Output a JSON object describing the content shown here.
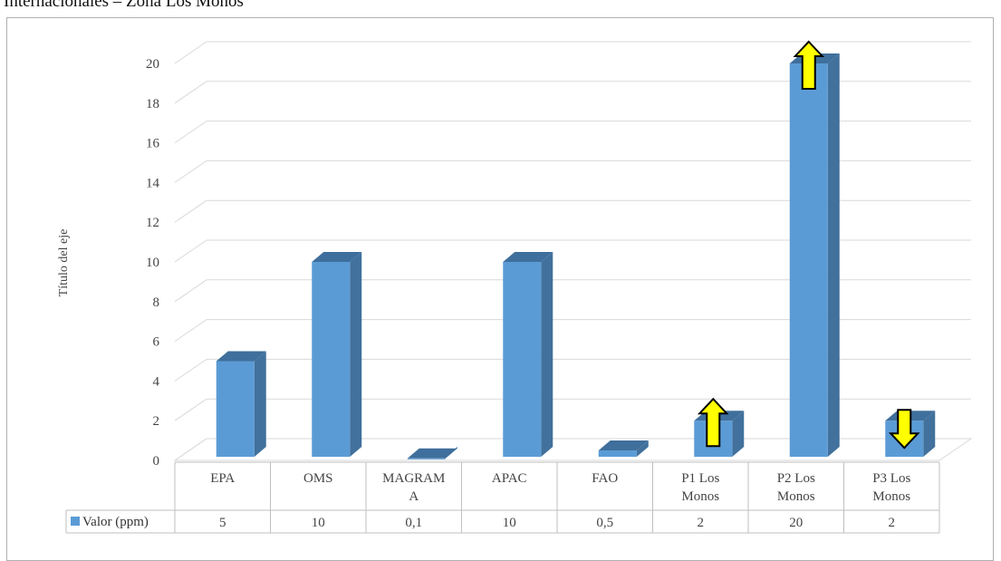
{
  "header_text": "Internacionales – Zona Los Monos",
  "chart_data": {
    "type": "bar",
    "title": "",
    "ylabel": "Título del eje",
    "xlabel": "",
    "ylim": [
      0,
      20
    ],
    "yticks": [
      0,
      2,
      4,
      6,
      8,
      10,
      12,
      14,
      16,
      18,
      20
    ],
    "categories": [
      [
        "EPA"
      ],
      [
        "OMS"
      ],
      [
        "MAGRAM",
        "A"
      ],
      [
        "APAC"
      ],
      [
        "FAO"
      ],
      [
        "P1 Los",
        "Monos"
      ],
      [
        "P2 Los",
        "Monos"
      ],
      [
        "P3 Los",
        "Monos"
      ]
    ],
    "series": [
      {
        "name": "Valor (ppm)",
        "values": [
          5,
          10,
          0.1,
          10,
          0.5,
          2,
          20,
          2
        ],
        "labels": [
          "5",
          "10",
          "0,1",
          "10",
          "0,5",
          "2",
          "20",
          "2"
        ]
      }
    ],
    "arrows": [
      {
        "category": "P1 Los Monos",
        "direction": "up"
      },
      {
        "category": "P2 Los Monos",
        "direction": "up"
      },
      {
        "category": "P3 Los Monos",
        "direction": "down"
      }
    ],
    "grid": true,
    "legend": "data-table",
    "colors": {
      "bar_front": "#5b9bd5",
      "bar_side": "#41719c",
      "bar_top": "#3f6f9c",
      "arrow_fill": "#ffff00",
      "grid": "#d9d9d9"
    }
  }
}
